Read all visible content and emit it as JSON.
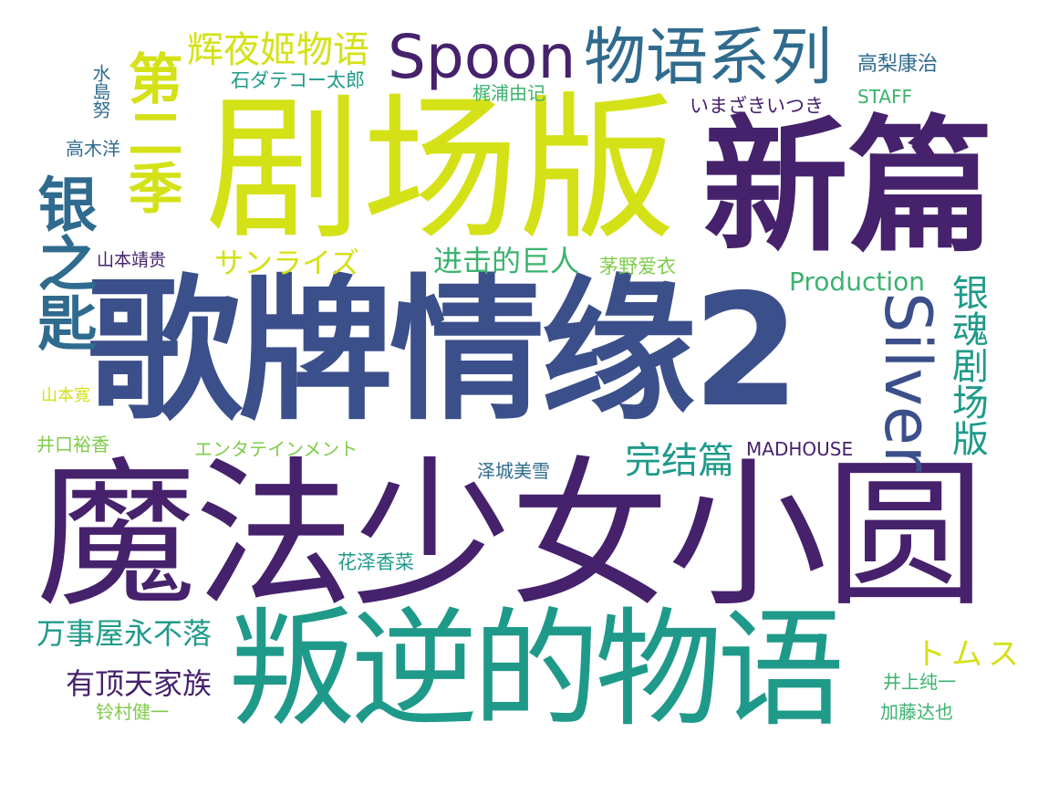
{
  "colors": {
    "background": "#ffffff",
    "dark_purple": "#46216c",
    "indigo": "#3b4f8a",
    "blue": "#2f6b8e",
    "teal": "#1f9a8a",
    "green": "#3bb36e",
    "lime": "#7fcc4a",
    "yellow": "#d4e117"
  },
  "words": [
    {
      "text": "歌牌情缘2",
      "color": "#3b4f8a"
    },
    {
      "text": "魔法少女小圆",
      "color": "#46216c"
    },
    {
      "text": "剧场版",
      "color": "#d4e117"
    },
    {
      "text": "新篇",
      "color": "#46216c"
    },
    {
      "text": "叛逆的物语",
      "color": "#1f9a8a"
    },
    {
      "text": "第二季",
      "color": "#d4e117"
    },
    {
      "text": "银之匙",
      "color": "#2f6b8e"
    },
    {
      "text": "Spoon",
      "color": "#46216c"
    },
    {
      "text": "物语系列",
      "color": "#2f6b8e"
    },
    {
      "text": "Silver",
      "color": "#3b4f8a"
    },
    {
      "text": "银魂剧场版",
      "color": "#1f9a8a"
    },
    {
      "text": "辉夜姬物语",
      "color": "#d4e117"
    },
    {
      "text": "完结篇",
      "color": "#1f9a8a"
    },
    {
      "text": "进击的巨人",
      "color": "#3bb36e"
    },
    {
      "text": "Production",
      "color": "#3bb36e"
    },
    {
      "text": "サンライズ",
      "color": "#d4e117"
    },
    {
      "text": "万事屋永不落",
      "color": "#1f9a8a"
    },
    {
      "text": "有顶天家族",
      "color": "#46216c"
    },
    {
      "text": "トムス",
      "color": "#d4e117"
    },
    {
      "text": "石ダテコー太郎",
      "color": "#1f9a8a"
    },
    {
      "text": "梶浦由记",
      "color": "#3bb36e"
    },
    {
      "text": "高梨康治",
      "color": "#2f6b8e"
    },
    {
      "text": "STAFF",
      "color": "#3bb36e"
    },
    {
      "text": "いまざきいつき",
      "color": "#46216c"
    },
    {
      "text": "水島努",
      "color": "#2f6b8e"
    },
    {
      "text": "高木洋",
      "color": "#2f6b8e"
    },
    {
      "text": "山本靖贵",
      "color": "#46216c"
    },
    {
      "text": "茅野爱衣",
      "color": "#7fcc4a"
    },
    {
      "text": "山本寛",
      "color": "#d4e117"
    },
    {
      "text": "井口裕香",
      "color": "#7fcc4a"
    },
    {
      "text": "エンタテインメント",
      "color": "#7fcc4a"
    },
    {
      "text": "MADHOUSE",
      "color": "#46216c"
    },
    {
      "text": "泽城美雪",
      "color": "#2f6b8e"
    },
    {
      "text": "花泽香菜",
      "color": "#1f9a8a"
    },
    {
      "text": "井上纯一",
      "color": "#3bb36e"
    },
    {
      "text": "铃村健一",
      "color": "#7fcc4a"
    },
    {
      "text": "加藤达也",
      "color": "#3bb36e"
    }
  ]
}
